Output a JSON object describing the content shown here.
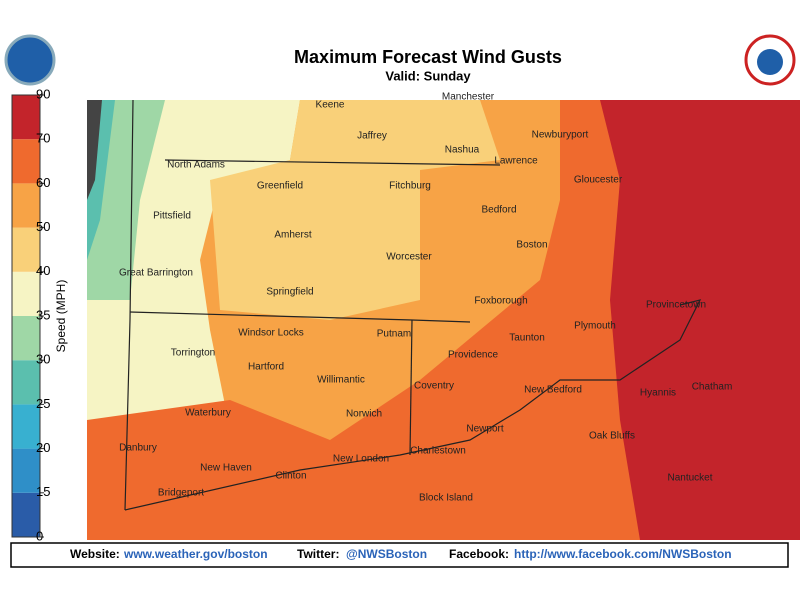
{
  "header": {
    "title": "Maximum Forecast Wind Gusts",
    "subtitle": "Valid: Sunday"
  },
  "colorbar": {
    "label": "Speed (MPH)",
    "ticks": [
      0,
      15,
      20,
      25,
      30,
      35,
      40,
      50,
      60,
      70,
      90
    ],
    "colors": [
      "#2a5ca8",
      "#2f8fc8",
      "#38b0d0",
      "#5bbfae",
      "#9fd7a6",
      "#f6f4c4",
      "#f9d079",
      "#f7a346",
      "#ef6a2e",
      "#c3242b"
    ]
  },
  "cities": [
    "Keene",
    "Manchester",
    "Jaffrey",
    "Newburyport",
    "Nashua",
    "North Adams",
    "Lawrence",
    "Greenfield",
    "Fitchburg",
    "Gloucester",
    "Pittsfield",
    "Bedford",
    "Amherst",
    "Boston",
    "Worcester",
    "Great Barrington",
    "Springfield",
    "Foxborough",
    "Provincetown",
    "Windsor Locks",
    "Putnam",
    "Plymouth",
    "Taunton",
    "Torrington",
    "Hartford",
    "Providence",
    "Willimantic",
    "Coventry",
    "New Bedford",
    "Hyannis",
    "Chatham",
    "Waterbury",
    "Norwich",
    "Newport",
    "Oak Bluffs",
    "Danbury",
    "Charlestown",
    "New Haven",
    "Clinton",
    "New London",
    "Nantucket",
    "Bridgeport",
    "Block Island"
  ],
  "footer": {
    "website_label": "Website:",
    "website": "www.weather.gov/boston",
    "twitter_label": "Twitter:",
    "twitter": "@NWSBoston",
    "facebook_label": "Facebook:",
    "facebook": "http://www.facebook.com/NWSBoston"
  }
}
